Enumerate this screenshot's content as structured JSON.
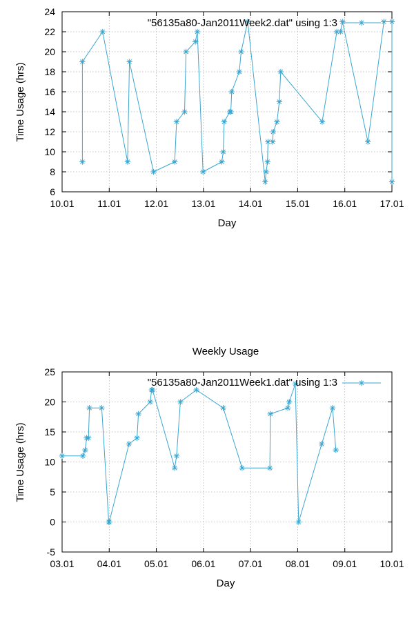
{
  "chart_data": [
    {
      "type": "line",
      "title": "",
      "xlabel": "Day",
      "ylabel": "Time Usage (hrs)",
      "xlim": [
        10.01,
        17.01
      ],
      "ylim": [
        6,
        24
      ],
      "x_ticks": [
        "10.01",
        "11.01",
        "12.01",
        "13.01",
        "14.01",
        "15.01",
        "16.01",
        "17.01"
      ],
      "y_ticks": [
        "6",
        "8",
        "10",
        "12",
        "14",
        "16",
        "18",
        "20",
        "22",
        "24"
      ],
      "grid": true,
      "legend_position": "top-right",
      "series": [
        {
          "name": "\"56135a80-Jan2011Week2.dat\" using 1:3",
          "color": "#3aa6d0",
          "marker": "asterisk",
          "x": [
            10.44,
            10.44,
            10.87,
            11.4,
            11.44,
            11.95,
            12.4,
            12.44,
            12.61,
            12.64,
            12.84,
            12.88,
            13.0,
            13.4,
            13.43,
            13.45,
            13.57,
            13.59,
            13.61,
            13.77,
            13.81,
            13.95,
            14.32,
            14.34,
            14.37,
            14.38,
            14.48,
            14.49,
            14.57,
            14.62,
            14.65,
            15.53,
            15.84,
            15.92,
            15.96,
            16.5,
            16.84,
            17.01,
            17.01
          ],
          "y": [
            9,
            19,
            22,
            9,
            19,
            8,
            9,
            13,
            14,
            20,
            21,
            22,
            8,
            9,
            10,
            13,
            14,
            14,
            16,
            18,
            20,
            23,
            7,
            8,
            9,
            11,
            11,
            12,
            13,
            15,
            18,
            13,
            22,
            22,
            23,
            11,
            23,
            23,
            7
          ]
        }
      ]
    },
    {
      "type": "line",
      "title": "Weekly Usage",
      "xlabel": "Day",
      "ylabel": "Time Usage (hrs)",
      "xlim": [
        3.01,
        10.01
      ],
      "ylim": [
        -5,
        25
      ],
      "x_ticks": [
        "03.01",
        "04.01",
        "05.01",
        "06.01",
        "07.01",
        "08.01",
        "09.01",
        "10.01"
      ],
      "y_ticks": [
        "-5",
        "0",
        "5",
        "10",
        "15",
        "20",
        "25"
      ],
      "grid": true,
      "legend_position": "top-right",
      "series": [
        {
          "name": "\"56135a80-Jan2011Week1.dat\" using 1:3",
          "color": "#3aa6d0",
          "marker": "asterisk",
          "x": [
            3.01,
            3.45,
            3.5,
            3.53,
            3.57,
            3.59,
            3.85,
            4.0,
            4.01,
            4.43,
            4.6,
            4.63,
            4.88,
            4.91,
            4.93,
            5.4,
            5.44,
            5.52,
            5.86,
            6.43,
            6.83,
            7.42,
            7.43,
            7.8,
            7.83,
            7.96,
            8.03,
            8.52,
            8.75,
            8.82
          ],
          "y": [
            11,
            11,
            12,
            14,
            14,
            19,
            19,
            0,
            0,
            13,
            14,
            18,
            20,
            22,
            22,
            9,
            11,
            20,
            22,
            19,
            9,
            9,
            18,
            19,
            20,
            23,
            0,
            13,
            19,
            12
          ]
        }
      ]
    }
  ]
}
